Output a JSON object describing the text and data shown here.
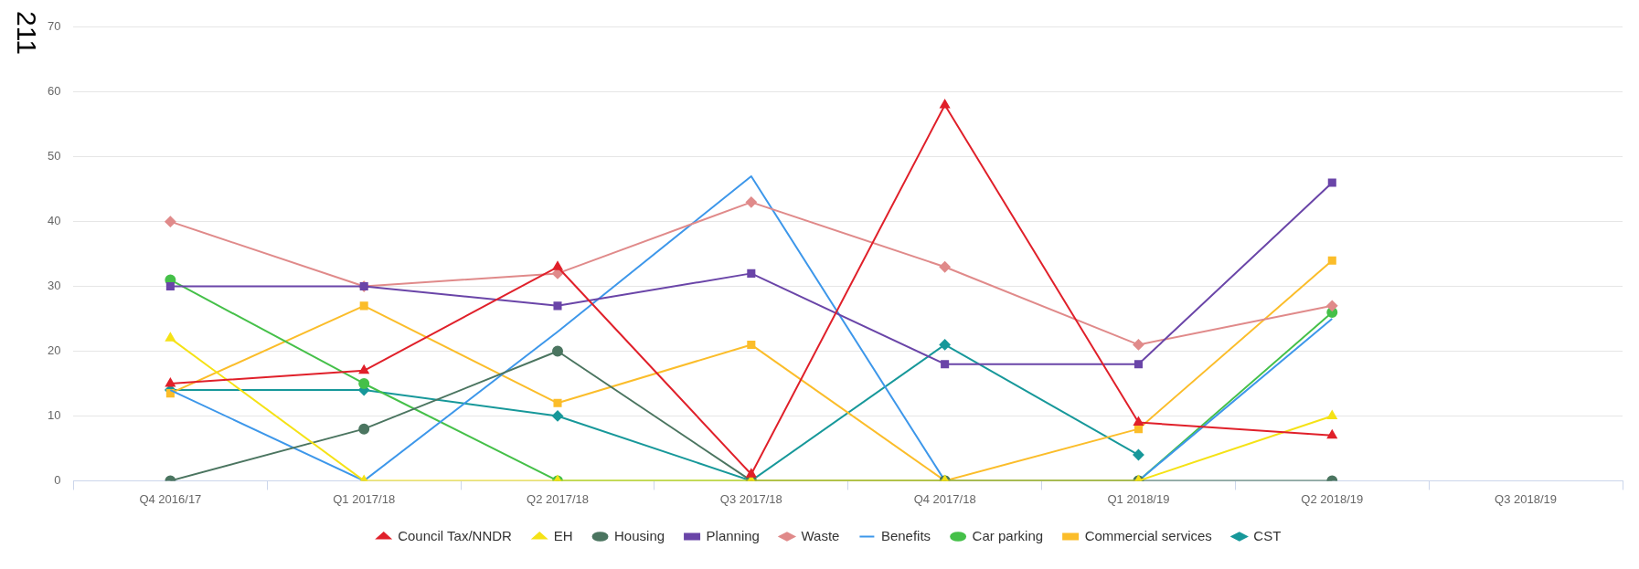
{
  "chart_data": {
    "type": "line",
    "categories": [
      "Q4 2016/17",
      "Q1 2017/18",
      "Q2 2017/18",
      "Q3 2017/18",
      "Q4 2017/18",
      "Q1 2018/19",
      "Q2 2018/19",
      "Q3 2018/19"
    ],
    "series": [
      {
        "name": "Council Tax/NNDR",
        "color": "#e0202a",
        "marker": "triangle",
        "values": [
          15,
          17,
          33,
          1,
          58,
          9,
          7,
          null
        ]
      },
      {
        "name": "EH",
        "color": "#f5e216",
        "marker": "triangle",
        "values": [
          22,
          0,
          0,
          0,
          0,
          0,
          10,
          null
        ]
      },
      {
        "name": "Housing",
        "color": "#4b7560",
        "marker": "circle",
        "values": [
          0,
          8,
          20,
          0,
          0,
          0,
          0,
          null
        ]
      },
      {
        "name": "Planning",
        "color": "#6a45a8",
        "marker": "square",
        "values": [
          30,
          30,
          27,
          32,
          18,
          18,
          46,
          null
        ]
      },
      {
        "name": "Waste",
        "color": "#e08a8a",
        "marker": "diamond",
        "values": [
          40,
          30,
          32,
          43,
          33,
          21,
          27,
          null
        ]
      },
      {
        "name": "Benefits",
        "color": "#3d97ea",
        "marker": "none",
        "values": [
          14,
          0,
          23,
          47,
          0,
          0,
          25,
          null
        ]
      },
      {
        "name": "Car parking",
        "color": "#45c049",
        "marker": "circle",
        "values": [
          31,
          15,
          0,
          0,
          0,
          0,
          26,
          null
        ]
      },
      {
        "name": "Commercial services",
        "color": "#fbbd2a",
        "marker": "square",
        "values": [
          13.5,
          27,
          12,
          21,
          0,
          8,
          34,
          null
        ]
      },
      {
        "name": "CST",
        "color": "#17989a",
        "marker": "diamond",
        "values": [
          14,
          14,
          10,
          0,
          21,
          4,
          null,
          null
        ]
      }
    ],
    "ylim": [
      0,
      70
    ],
    "yticks": [
      0,
      10,
      20,
      30,
      40,
      50,
      60,
      70
    ],
    "grid": "y",
    "legend": "bottom",
    "annotations": [
      "211"
    ]
  }
}
